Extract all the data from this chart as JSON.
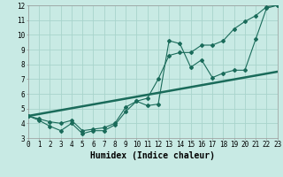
{
  "xlabel": "Humidex (Indice chaleur)",
  "x_min": 0,
  "x_max": 23,
  "y_min": 3,
  "y_max": 12,
  "bg_color": "#c8eae4",
  "grid_color": "#a8d4cc",
  "line_color": "#1a6b5a",
  "line1_x": [
    0,
    1,
    2,
    3,
    4,
    5,
    6,
    7,
    8,
    9,
    10,
    11,
    12,
    13,
    14,
    15,
    16,
    17,
    18,
    19,
    20,
    21,
    22,
    23
  ],
  "line1_y": [
    4.5,
    4.2,
    3.8,
    3.5,
    4.0,
    3.3,
    3.5,
    3.5,
    3.9,
    4.8,
    5.5,
    5.2,
    5.3,
    9.6,
    9.4,
    7.8,
    8.3,
    7.1,
    7.4,
    7.6,
    7.6,
    9.7,
    11.8,
    12.0
  ],
  "line2_x": [
    0,
    1,
    2,
    3,
    4,
    5,
    6,
    7,
    8,
    9,
    10,
    11,
    12,
    13,
    14,
    15,
    16,
    17,
    18,
    19,
    20,
    21,
    22,
    23
  ],
  "line2_y": [
    4.5,
    4.3,
    4.1,
    4.0,
    4.2,
    3.5,
    3.6,
    3.7,
    4.0,
    5.1,
    5.5,
    5.7,
    7.0,
    8.6,
    8.8,
    8.8,
    9.3,
    9.3,
    9.6,
    10.4,
    10.9,
    11.3,
    11.9,
    12.0
  ],
  "line3_x": [
    0,
    23
  ],
  "line3_y": [
    4.5,
    7.5
  ],
  "tick_fontsize": 5.5,
  "label_fontsize": 7.0
}
